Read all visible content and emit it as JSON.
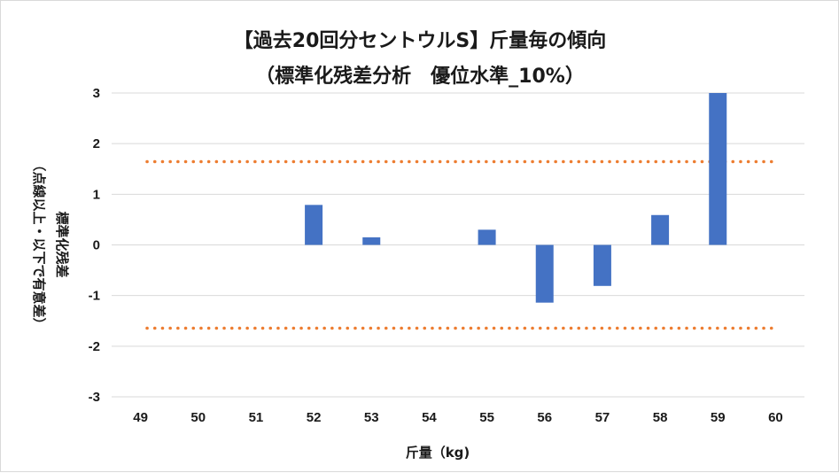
{
  "chart_data": {
    "type": "bar",
    "title": "【過去20回分セントウルS】斤量毎の傾向",
    "subtitle": "（標準化残差分析　優位水準_10%）",
    "xlabel": "斤量（kg)",
    "ylabel": "標準化残差",
    "ylabel_note": "（点線以上・以下で有意差）",
    "categories": [
      "49",
      "50",
      "51",
      "52",
      "53",
      "54",
      "55",
      "56",
      "57",
      "58",
      "59",
      "60"
    ],
    "values": [
      0,
      0,
      0,
      0.79,
      0.15,
      0,
      0.3,
      -1.14,
      -0.81,
      0.59,
      3.0,
      0
    ],
    "ylim": [
      -3,
      3
    ],
    "yticks": [
      "3",
      "2",
      "1",
      "0",
      "-1",
      "-2",
      "-3"
    ],
    "ytick_values": [
      3,
      2,
      1,
      0,
      -1,
      -2,
      -3
    ],
    "threshold_upper": 1.645,
    "threshold_lower": -1.645,
    "grid": true,
    "bar_color": "#4472c4",
    "threshold_color": "#ed7d31",
    "grid_color": "#d9d9d9"
  }
}
